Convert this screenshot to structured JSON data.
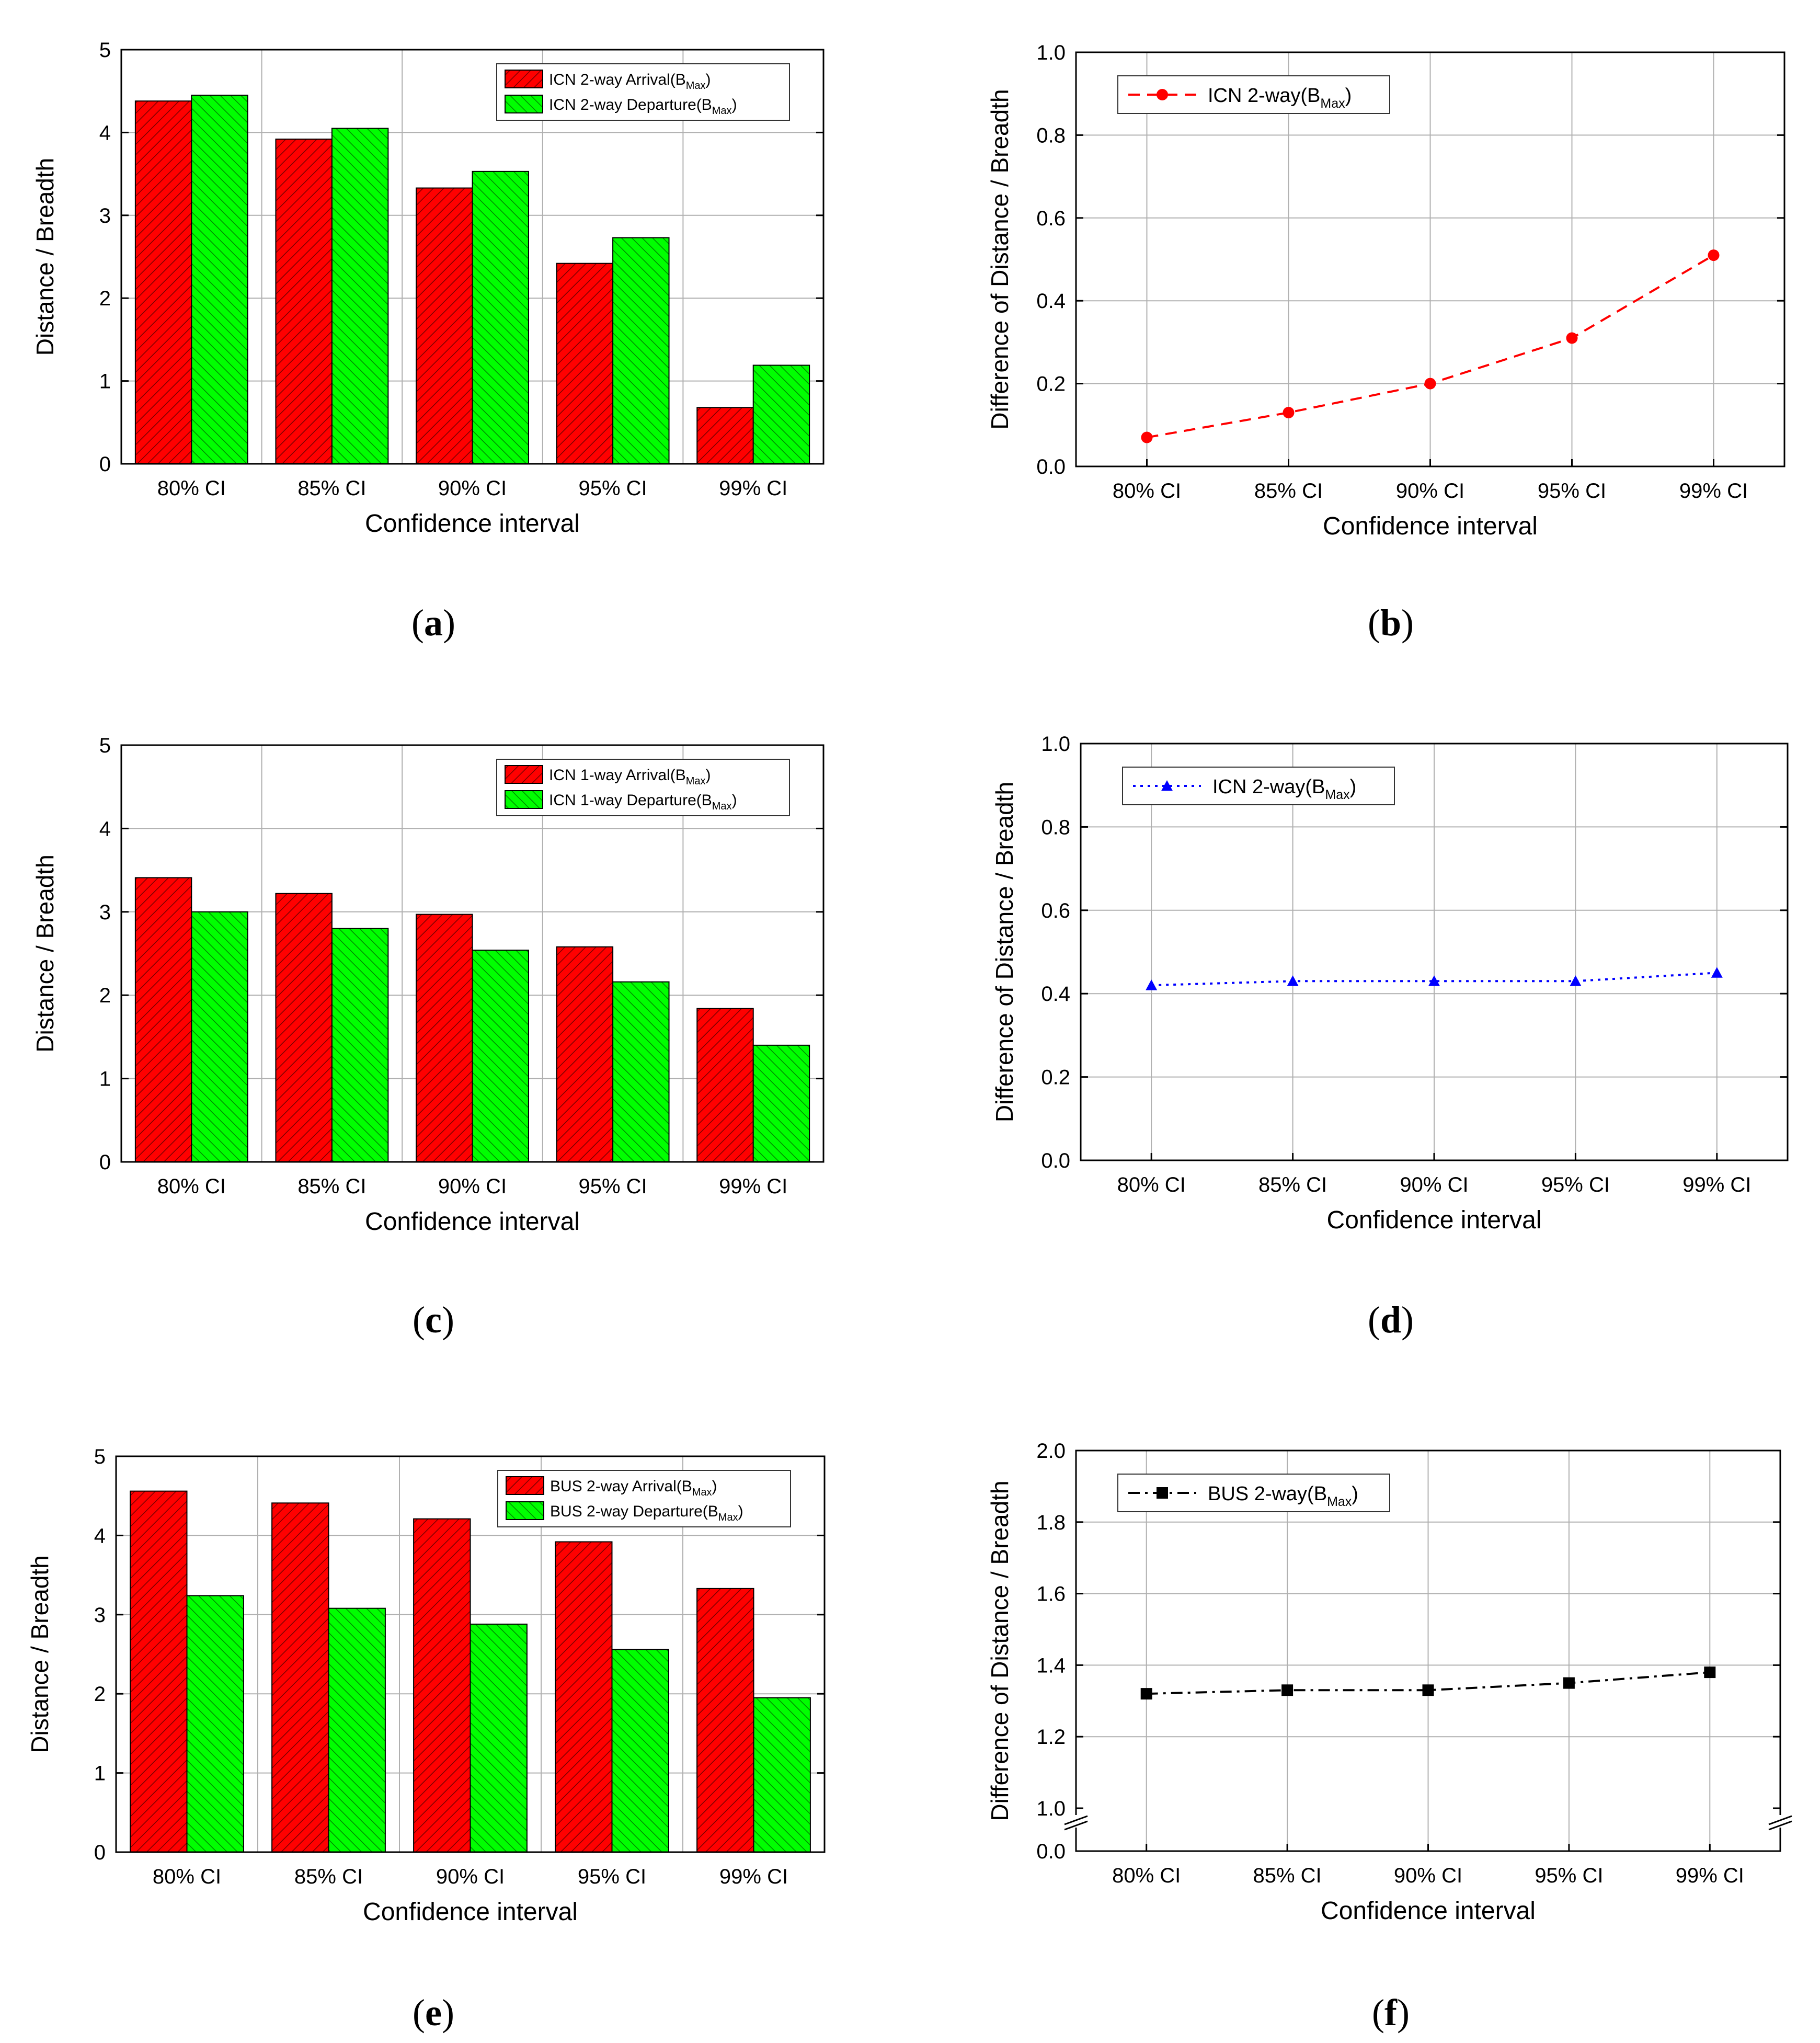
{
  "figure": {
    "captions": [
      "(a)",
      "(b)",
      "(c)",
      "(d)",
      "(e)",
      "(f)"
    ],
    "caption_parts": [
      {
        "open": "(",
        "letter": "a",
        "close": ")"
      },
      {
        "open": "(",
        "letter": "b",
        "close": ")"
      },
      {
        "open": "(",
        "letter": "c",
        "close": ")"
      },
      {
        "open": "(",
        "letter": "d",
        "close": ")"
      },
      {
        "open": "(",
        "letter": "e",
        "close": ")"
      },
      {
        "open": "(",
        "letter": "f",
        "close": ")"
      }
    ]
  },
  "colors": {
    "arrival": "#ff0000",
    "departure": "#00ff00",
    "series_b": "#ff0000",
    "series_d": "#0000ff",
    "series_f": "#000000",
    "grid": "#b0b0b0"
  },
  "chart_data": [
    {
      "panel": "a",
      "type": "bar",
      "categories": [
        "80% CI",
        "85% CI",
        "90% CI",
        "95% CI",
        "99% CI"
      ],
      "series": [
        {
          "name": "ICN 2-way Arrival(B",
          "sub": "Max",
          "suffix": ")",
          "values": [
            4.38,
            3.92,
            3.33,
            2.42,
            0.68
          ]
        },
        {
          "name": "ICN 2-way Departure(B",
          "sub": "Max",
          "suffix": ")",
          "values": [
            4.45,
            4.05,
            3.53,
            2.73,
            1.19
          ]
        }
      ],
      "xlabel": "Confidence interval",
      "ylabel": "Distance / Breadth",
      "ylim": [
        0,
        5
      ],
      "yticks": [
        "0",
        "1",
        "2",
        "3",
        "4",
        "5"
      ],
      "grid": true,
      "legend": "top-right"
    },
    {
      "panel": "b",
      "type": "line",
      "categories": [
        "80% CI",
        "85% CI",
        "90% CI",
        "95% CI",
        "99% CI"
      ],
      "series": [
        {
          "name": "ICN 2-way(B",
          "sub": "Max",
          "suffix": ")",
          "values": [
            0.07,
            0.13,
            0.2,
            0.31,
            0.51
          ],
          "marker": "circle",
          "linestyle": "dashed"
        }
      ],
      "xlabel": "Confidence interval",
      "ylabel": "Difference of Distance / Breadth",
      "ylim": [
        0,
        1
      ],
      "yticks": [
        "0.0",
        "0.2",
        "0.4",
        "0.6",
        "0.8",
        "1.0"
      ],
      "grid": true,
      "legend": "top-left"
    },
    {
      "panel": "c",
      "type": "bar",
      "categories": [
        "80% CI",
        "85% CI",
        "90% CI",
        "95% CI",
        "99% CI"
      ],
      "series": [
        {
          "name": "ICN 1-way Arrival(B",
          "sub": "Max",
          "suffix": ")",
          "values": [
            3.41,
            3.22,
            2.97,
            2.58,
            1.84
          ]
        },
        {
          "name": "ICN 1-way Departure(B",
          "sub": "Max",
          "suffix": ")",
          "values": [
            3.0,
            2.8,
            2.54,
            2.16,
            1.4
          ]
        }
      ],
      "xlabel": "Confidence interval",
      "ylabel": "Distance / Breadth",
      "ylim": [
        0,
        5
      ],
      "yticks": [
        "0",
        "1",
        "2",
        "3",
        "4",
        "5"
      ],
      "grid": true,
      "legend": "top-right"
    },
    {
      "panel": "d",
      "type": "line",
      "categories": [
        "80% CI",
        "85% CI",
        "90% CI",
        "95% CI",
        "99% CI"
      ],
      "series": [
        {
          "name": "ICN 2-way(B",
          "sub": "Max",
          "suffix": ")",
          "values": [
            0.42,
            0.43,
            0.43,
            0.43,
            0.45
          ],
          "marker": "triangle",
          "linestyle": "dotted"
        }
      ],
      "xlabel": "Confidence interval",
      "ylabel": "Difference of Distance / Breadth",
      "ylim": [
        0,
        1
      ],
      "yticks": [
        "0.0",
        "0.2",
        "0.4",
        "0.6",
        "0.8",
        "1.0"
      ],
      "grid": true,
      "legend": "top-left"
    },
    {
      "panel": "e",
      "type": "bar",
      "categories": [
        "80% CI",
        "85% CI",
        "90% CI",
        "95% CI",
        "99% CI"
      ],
      "series": [
        {
          "name": "BUS 2-way Arrival(B",
          "sub": "Max",
          "suffix": ")",
          "values": [
            4.56,
            4.41,
            4.21,
            3.92,
            3.33
          ]
        },
        {
          "name": "BUS 2-way Departure(B",
          "sub": "Max",
          "suffix": ")",
          "values": [
            3.24,
            3.08,
            2.88,
            2.56,
            1.95
          ]
        }
      ],
      "xlabel": "Confidence interval",
      "ylabel": "Distance / Breadth",
      "ylim": [
        0,
        5
      ],
      "yticks": [
        "0",
        "1",
        "2",
        "3",
        "4",
        "5"
      ],
      "grid": true,
      "legend": "top-right"
    },
    {
      "panel": "f",
      "type": "line",
      "categories": [
        "80% CI",
        "85% CI",
        "90% CI",
        "95% CI",
        "99% CI"
      ],
      "series": [
        {
          "name": "BUS 2-way(B",
          "sub": "Max",
          "suffix": ")",
          "values": [
            1.32,
            1.33,
            1.33,
            1.35,
            1.38
          ],
          "marker": "square",
          "linestyle": "dash-dot"
        }
      ],
      "xlabel": "Confidence interval",
      "ylabel": "Difference of Distance / Breadth",
      "ylim": [
        1.0,
        2.0
      ],
      "yticks": [
        "1.0",
        "1.2",
        "1.4",
        "1.6",
        "1.8",
        "2.0"
      ],
      "axis_break": {
        "lower_tick": "0.0",
        "upper_start": 1.0
      },
      "grid": true,
      "legend": "top-left"
    }
  ]
}
